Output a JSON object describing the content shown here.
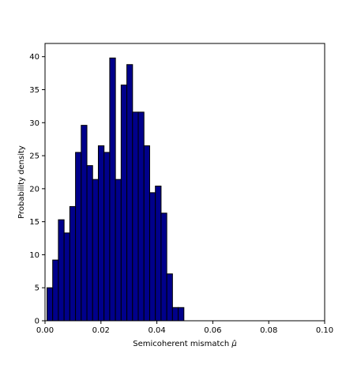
{
  "chart_data": {
    "type": "bar",
    "title": "",
    "xlabel": "Semicoherent mismatch $\\hat{\\mu}$",
    "xlabel_text": "Semicoherent mismatch ",
    "xlabel_symbol": "μ̂",
    "ylabel": "Probability density",
    "xlim": [
      0,
      0.1
    ],
    "ylim": [
      0,
      42
    ],
    "grid": false,
    "legend": "none",
    "bar_fill": "#00008b",
    "bar_edge": "#000000",
    "x_ticks": [
      {
        "value": 0.0,
        "label": "0.00"
      },
      {
        "value": 0.02,
        "label": "0.02"
      },
      {
        "value": 0.04,
        "label": "0.04"
      },
      {
        "value": 0.06,
        "label": "0.06"
      },
      {
        "value": 0.08,
        "label": "0.08"
      },
      {
        "value": 0.1,
        "label": "0.10"
      }
    ],
    "y_ticks": [
      {
        "value": 0,
        "label": "0"
      },
      {
        "value": 5,
        "label": "5"
      },
      {
        "value": 10,
        "label": "10"
      },
      {
        "value": 15,
        "label": "15"
      },
      {
        "value": 20,
        "label": "20"
      },
      {
        "value": 25,
        "label": "25"
      },
      {
        "value": 30,
        "label": "30"
      },
      {
        "value": 35,
        "label": "35"
      },
      {
        "value": 40,
        "label": "40"
      }
    ],
    "bin_start": 0.0007,
    "bin_width": 0.00204,
    "values": [
      5.0,
      9.2,
      15.3,
      13.3,
      17.3,
      25.5,
      29.6,
      23.5,
      21.4,
      26.5,
      25.5,
      39.8,
      21.4,
      35.7,
      38.8,
      31.6,
      31.6,
      26.5,
      19.4,
      20.4,
      16.3,
      7.1,
      2.0,
      2.0
    ]
  }
}
